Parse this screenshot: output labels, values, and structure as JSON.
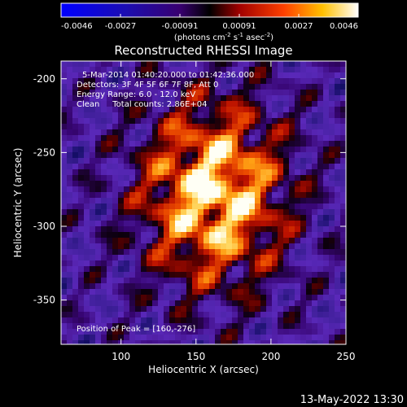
{
  "chart_data": {
    "type": "heatmap",
    "title": "Reconstructed RHESSI Image",
    "xlabel": "Heliocentric X (arcsec)",
    "ylabel": "Heliocentric Y (arcsec)",
    "xlim": [
      60,
      250
    ],
    "ylim": [
      -380,
      -188
    ],
    "xticks": [
      100,
      150,
      200,
      250
    ],
    "yticks": [
      -200,
      -250,
      -300,
      -350
    ],
    "colorbar": {
      "min": -0.0046,
      "max": 0.0046,
      "tick_labels": [
        "-0.0046",
        "-0.0027",
        "-0.00091",
        "0.00091",
        "0.0027",
        "0.0046"
      ],
      "unit_prefix": "(photons cm",
      "unit_sup1": "-2",
      "unit_mid1": " s",
      "unit_sup2": "-1",
      "unit_mid2": " asec",
      "unit_sup3": "-2",
      "unit_suffix": ")"
    },
    "annotations": [
      "5-Mar-2014 01:40:20.000 to 01:42:36.000",
      "Detectors: 3F 4F 5F 6F 7F 8F, Att 0",
      "Energy Range: 6.0 - 12.0 keV",
      "Clean     Total counts: 2.86E+04"
    ],
    "peak_label": "Position of Peak = [160,-276]",
    "peak": {
      "x": 160,
      "y": -276
    }
  },
  "footer": {
    "timestamp": "13-May-2022 13:30"
  }
}
